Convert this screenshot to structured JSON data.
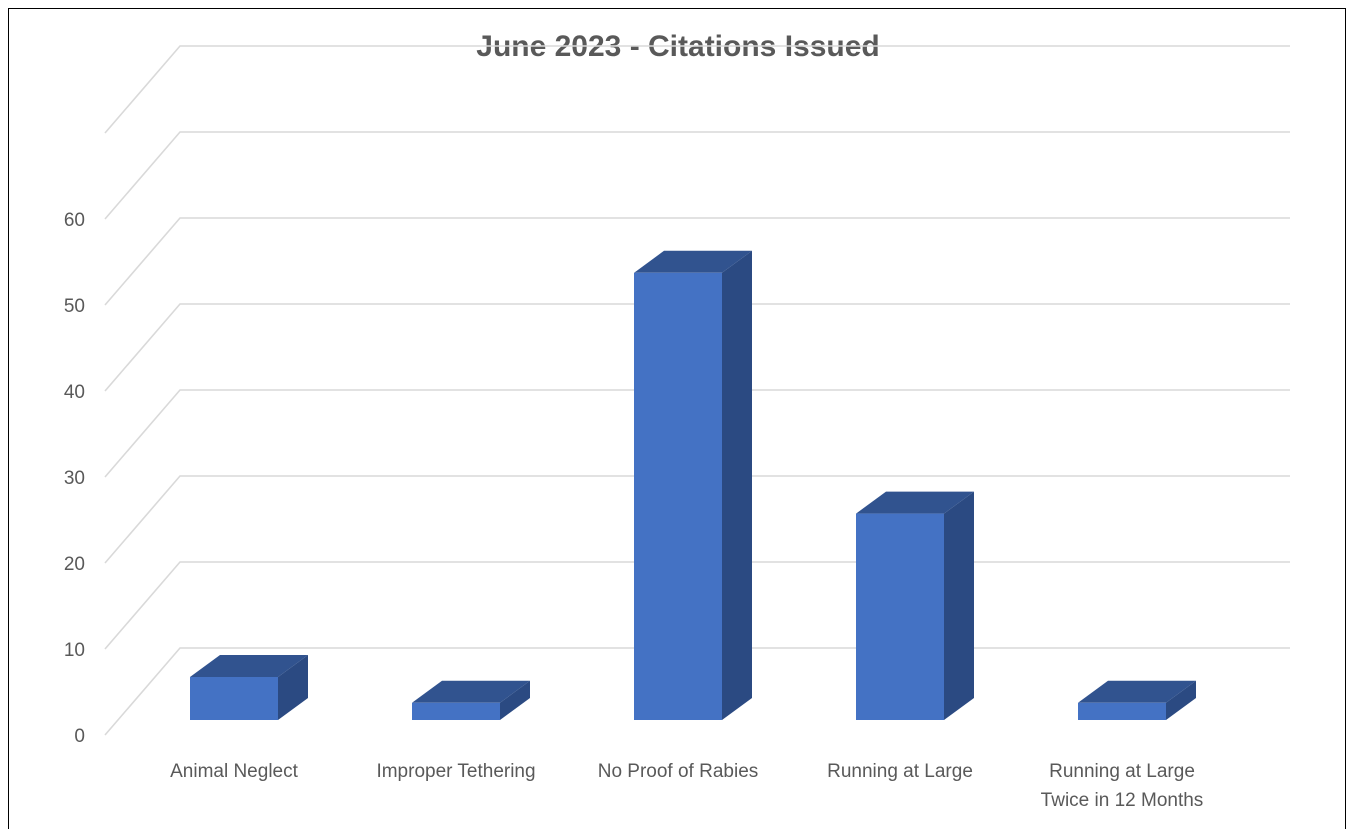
{
  "chart_data": {
    "type": "bar",
    "title": "June 2023 - Citations Issued",
    "categories": [
      [
        "Animal Neglect"
      ],
      [
        "Improper Tethering"
      ],
      [
        "No Proof of Rabies"
      ],
      [
        "Running at Large"
      ],
      [
        "Running at Large",
        "Twice in 12 Months"
      ]
    ],
    "values": [
      5,
      2,
      52,
      24,
      2
    ],
    "ylim": [
      0,
      60
    ],
    "yticks": [
      0,
      10,
      20,
      30,
      40,
      50,
      60
    ],
    "grid": true,
    "legend": "none",
    "style": "3d-column",
    "colors": {
      "front": "#4472C4",
      "side": "#2B4A82",
      "top": "#31538F",
      "grid": "#D9D9D9",
      "text": "#595959"
    }
  }
}
